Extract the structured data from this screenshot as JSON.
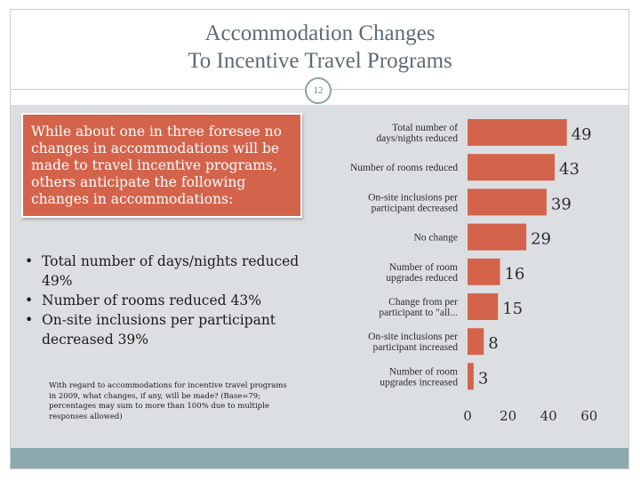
{
  "page": {
    "title_line1": "Accommodation Changes",
    "title_line2": "To Incentive Travel Programs",
    "page_number": "12"
  },
  "callout": {
    "text": "While about one in three foresee no changes in accommodations will be made to travel incentive programs, others anticipate the following changes in accommodations:"
  },
  "bullets": [
    "Total number of days/nights reduced 49%",
    "Number of rooms reduced 43%",
    "On-site inclusions per participant decreased 39%"
  ],
  "footnote": "With regard to accommodations for incentive travel programs in 2009, what changes, if any, will be made? (Base=79; percentages may sum to more than 100% due to multiple responses allowed)",
  "colors": {
    "bar": "#d4634c",
    "callout_bg": "#d4634c",
    "panel_bg": "#dcdfe1",
    "footer_bg": "#8ea9ad",
    "title_text": "#5d6b75"
  },
  "chart_data": {
    "type": "bar",
    "orientation": "horizontal",
    "categories": [
      [
        "Total number of",
        "days/nights reduced"
      ],
      [
        "Number of rooms reduced"
      ],
      [
        "On-site inclusions per",
        "participant decreased"
      ],
      [
        "No change"
      ],
      [
        "Number of room",
        "upgrades reduced"
      ],
      [
        "Change from per",
        "participant to \"all..."
      ],
      [
        "On-site inclusions per",
        "participant increased"
      ],
      [
        "Number of room",
        "upgrades increased"
      ]
    ],
    "values": [
      49,
      43,
      39,
      29,
      16,
      15,
      8,
      3
    ],
    "data_labels": [
      "49",
      "43",
      "39",
      "29",
      "16",
      "15",
      "8",
      "3"
    ],
    "xlim": [
      0,
      60
    ],
    "xticks": [
      0,
      20,
      40,
      60
    ],
    "xtick_labels": [
      "0",
      "20",
      "40",
      "60"
    ],
    "grid": false,
    "legend": "none",
    "title": "",
    "xlabel": "",
    "ylabel": ""
  }
}
